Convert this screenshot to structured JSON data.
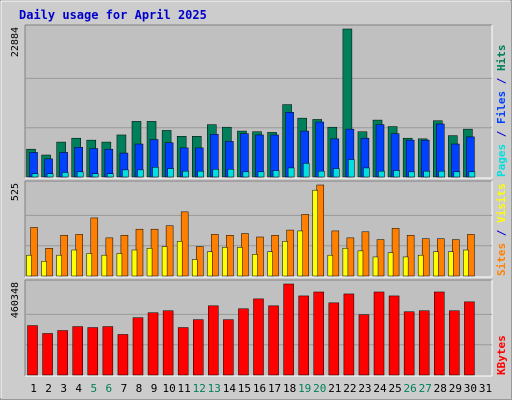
{
  "title": "Daily usage for April 2025",
  "colors": {
    "page_bg": "#ffffff",
    "frame_bg": "#cccccc",
    "plot_bg": "#c0c0c0",
    "title": "#0000cc",
    "hits": "#00805a",
    "files": "#0040ff",
    "pages": "#00e0e0",
    "visits": "#ffff00",
    "sites": "#ff8000",
    "kbytes": "#ff0000",
    "separator": "#0000cc"
  },
  "chart_data": [
    {
      "type": "bar",
      "name": "hits-files-pages",
      "ymax_label": "22884",
      "ylim": [
        0,
        22884
      ],
      "legend": [
        {
          "label": "Pages",
          "color_key": "pages"
        },
        {
          "label": "Files",
          "color_key": "files"
        },
        {
          "label": "Hits",
          "color_key": "hits"
        }
      ],
      "categories": [
        "1",
        "2",
        "3",
        "4",
        "5",
        "6",
        "7",
        "8",
        "9",
        "10",
        "11",
        "12",
        "13",
        "14",
        "15",
        "16",
        "17",
        "18",
        "19",
        "20",
        "21",
        "22",
        "23",
        "24",
        "25",
        "26",
        "27",
        "28",
        "29",
        "30",
        "31"
      ],
      "series": [
        {
          "name": "Hits",
          "values": [
            4300,
            3400,
            5400,
            6000,
            5700,
            5400,
            6500,
            8600,
            8600,
            7200,
            6300,
            6300,
            8100,
            7700,
            7100,
            7000,
            6900,
            11200,
            9100,
            8900,
            7700,
            22884,
            7000,
            8800,
            7800,
            6000,
            5900,
            8700,
            6400,
            7400,
            0
          ]
        },
        {
          "name": "Files",
          "values": [
            3800,
            2800,
            3800,
            4600,
            4400,
            4300,
            3700,
            5100,
            5800,
            5300,
            4500,
            4500,
            6600,
            5500,
            6700,
            6500,
            6500,
            10000,
            7100,
            8500,
            5900,
            7400,
            6000,
            8100,
            6700,
            5700,
            5700,
            8200,
            5100,
            6200,
            0
          ]
        },
        {
          "name": "Pages",
          "values": [
            500,
            500,
            700,
            800,
            500,
            500,
            1100,
            1100,
            1500,
            1300,
            900,
            900,
            1200,
            1200,
            800,
            800,
            1000,
            1400,
            2100,
            900,
            1300,
            2700,
            1400,
            900,
            1000,
            800,
            900,
            900,
            800,
            800,
            0
          ]
        }
      ],
      "day_marks": [
        "",
        "",
        "",
        "",
        "weekend",
        "weekend",
        "",
        "",
        "",
        "",
        "",
        "weekend",
        "weekend",
        "",
        "",
        "",
        "",
        "",
        "weekend",
        "weekend",
        "",
        "",
        "",
        "",
        "",
        "weekend",
        "weekend",
        "",
        "",
        "",
        ""
      ]
    },
    {
      "type": "bar",
      "name": "visits-sites",
      "ymax_label": "525",
      "ylim": [
        0,
        525
      ],
      "legend": [
        {
          "label": "Sites",
          "color_key": "sites"
        },
        {
          "label": "Visits",
          "color_key": "visits"
        }
      ],
      "categories": [
        "1",
        "2",
        "3",
        "4",
        "5",
        "6",
        "7",
        "8",
        "9",
        "10",
        "11",
        "12",
        "13",
        "14",
        "15",
        "16",
        "17",
        "18",
        "19",
        "20",
        "21",
        "22",
        "23",
        "24",
        "25",
        "26",
        "27",
        "28",
        "29",
        "30",
        "31"
      ],
      "series": [
        {
          "name": "Sites",
          "values": [
            280,
            160,
            235,
            240,
            335,
            220,
            235,
            270,
            270,
            290,
            370,
            170,
            240,
            235,
            245,
            225,
            235,
            265,
            355,
            525,
            260,
            220,
            255,
            210,
            275,
            235,
            215,
            215,
            210,
            240,
            0
          ]
        },
        {
          "name": "Visits",
          "values": [
            120,
            85,
            120,
            150,
            130,
            120,
            130,
            150,
            160,
            170,
            200,
            95,
            140,
            165,
            165,
            125,
            140,
            200,
            260,
            495,
            120,
            160,
            145,
            110,
            135,
            110,
            120,
            140,
            140,
            150,
            0
          ]
        }
      ]
    },
    {
      "type": "bar",
      "name": "kbytes",
      "ymax_label": "460348",
      "ylim": [
        0,
        460348
      ],
      "legend": [
        {
          "label": "KBytes",
          "color_key": "kbytes"
        }
      ],
      "categories": [
        "1",
        "2",
        "3",
        "4",
        "5",
        "6",
        "7",
        "8",
        "9",
        "10",
        "11",
        "12",
        "13",
        "14",
        "15",
        "16",
        "17",
        "18",
        "19",
        "20",
        "21",
        "22",
        "23",
        "24",
        "25",
        "26",
        "27",
        "28",
        "29",
        "30",
        "31"
      ],
      "series": [
        {
          "name": "KBytes",
          "values": [
            250000,
            210000,
            225000,
            245000,
            240000,
            245000,
            205000,
            290000,
            315000,
            325000,
            240000,
            280000,
            350000,
            280000,
            335000,
            385000,
            350000,
            460348,
            400000,
            420000,
            365000,
            410000,
            305000,
            420000,
            400000,
            320000,
            325000,
            420000,
            325000,
            370000,
            0
          ]
        }
      ]
    }
  ]
}
